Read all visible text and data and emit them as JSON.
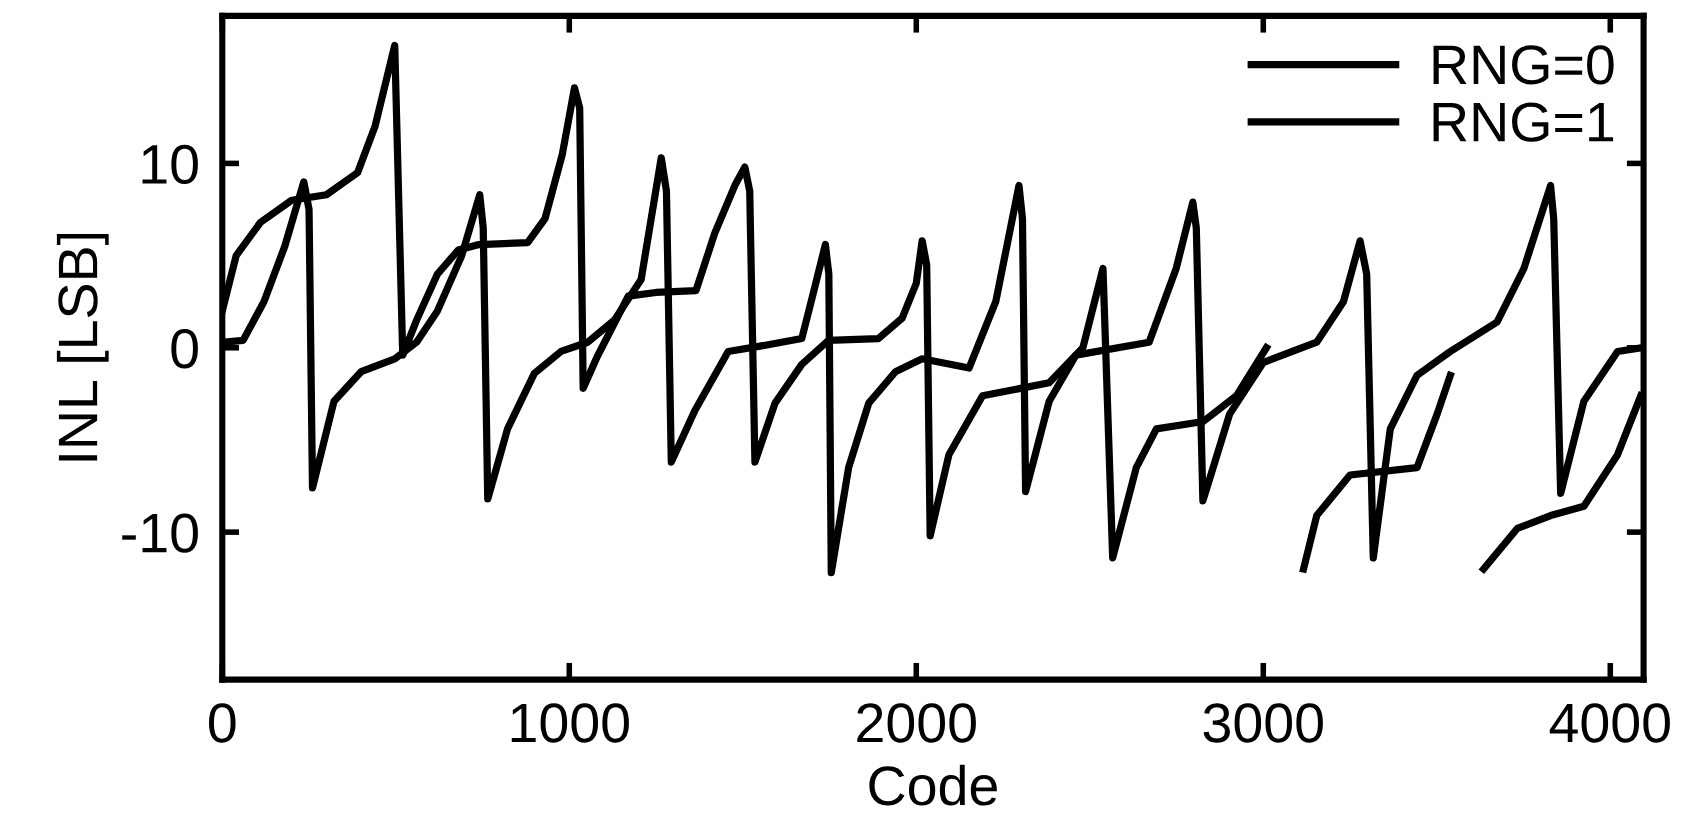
{
  "chart_data": {
    "type": "line",
    "xlabel": "Code",
    "ylabel": "INL [LSB]",
    "xlim": [
      0,
      4096
    ],
    "ylim": [
      -18,
      18
    ],
    "xticks": [
      0,
      1000,
      2000,
      3000,
      4000
    ],
    "yticks": [
      -10,
      0,
      10
    ],
    "grid": false,
    "legend": "top right",
    "marker": "none",
    "line_style": "solid",
    "series": [
      {
        "name": "RNG=0",
        "color": "#000000",
        "x": [
          0,
          40,
          110,
          200,
          300,
          390,
          440,
          497,
          520,
          560,
          620,
          680,
          740,
          880,
          930,
          980,
          1015,
          1030,
          1040,
          1080,
          1170,
          1250,
          1365,
          1419,
          1477,
          1506,
          1520,
          1535,
          1593,
          1670,
          1747,
          1891,
          1959,
          2000,
          2017,
          2030,
          2040,
          2094,
          2191,
          2383,
          2480,
          2538,
          2566,
          2634,
          2692,
          2827,
          2923,
          3009,
          3038,
          3058,
          3116,
          3154,
          3250,
          3443,
          3501,
          3539,
          3568,
          3597,
          3635,
          3732,
          3828,
          3924,
          4021,
          4088
        ],
        "values": [
          2.0,
          5.0,
          6.8,
          8.0,
          8.3,
          9.5,
          12.0,
          16.4,
          -0.4,
          1.5,
          4.0,
          5.3,
          5.6,
          5.7,
          7.0,
          10.5,
          14.1,
          13.0,
          -2.2,
          -0.5,
          2.8,
          3.0,
          3.1,
          6.2,
          8.8,
          9.8,
          8.5,
          -6.2,
          -3.0,
          -0.9,
          0.4,
          0.5,
          1.6,
          3.5,
          5.8,
          4.5,
          -10.2,
          -5.8,
          -2.6,
          -1.9,
          0.0,
          4.3,
          -11.4,
          -6.5,
          -4.4,
          -4.0,
          -2.6,
          0.0,
          null,
          null,
          -12,
          -9.1,
          -6.9,
          -6.5,
          -3.6,
          -1.5,
          null,
          null,
          -12,
          -9.8,
          -9.1,
          -8.6,
          -5.8,
          -2.6
        ]
      },
      {
        "name": "RNG=1",
        "color": "#000000",
        "x": [
          0,
          60,
          120,
          180,
          235,
          250,
          260,
          322,
          400,
          497,
          560,
          620,
          690,
          742,
          752,
          765,
          822,
          899,
          976,
          1053,
          1130,
          1207,
          1265,
          1280,
          1294,
          1362,
          1458,
          1554,
          1670,
          1709,
          1738,
          1748,
          1755,
          1805,
          1863,
          1940,
          2017,
          2152,
          2229,
          2296,
          2306,
          2315,
          2383,
          2460,
          2671,
          2749,
          2797,
          2807,
          2826,
          2903,
          3000,
          3154,
          3231,
          3279,
          3298,
          3317,
          3366,
          3443,
          3539,
          3674,
          3751,
          3828,
          3837,
          3857,
          3924,
          4021,
          4088
        ],
        "values": [
          0.3,
          0.4,
          2.5,
          5.5,
          9.0,
          7.5,
          -7.6,
          -2.9,
          -1.3,
          -0.6,
          0.3,
          2.0,
          5.0,
          8.3,
          6.5,
          -8.2,
          -4.4,
          -1.4,
          -0.2,
          0.3,
          1.5,
          3.7,
          10.3,
          8.5,
          -6.2,
          -3.4,
          -0.2,
          0.1,
          0.5,
          3.4,
          5.6,
          4.0,
          -12.2,
          -6.5,
          -3.0,
          -1.3,
          -0.6,
          -1.1,
          2.5,
          8.8,
          7.0,
          -7.8,
          -2.9,
          -0.4,
          0.3,
          4.3,
          7.9,
          6.5,
          -8.3,
          -3.6,
          -0.8,
          0.3,
          2.5,
          5.8,
          4.0,
          -11.4,
          -4.4,
          -1.5,
          -0.2,
          1.4,
          4.3,
          8.8,
          7.0,
          -7.9,
          -2.9,
          -0.2,
          0.0
        ]
      }
    ]
  }
}
